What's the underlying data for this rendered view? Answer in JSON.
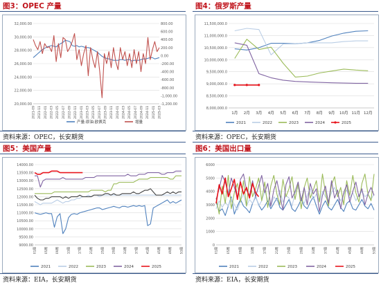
{
  "panels": [
    {
      "title": "图3：OPEC 产量",
      "source": "资料来源：OPEC，长安期货"
    },
    {
      "title": "图4：俄罗斯产量",
      "source": "资料来源：OPEC，长安期货"
    },
    {
      "title": "图5：美国产量",
      "source": "资料来源：EIA，长安期货"
    },
    {
      "title": "图6：美国出口量",
      "source": "资料来源：EIA，长安期货"
    }
  ],
  "colors": {
    "title": "#c0141c",
    "border": "#3a5a8c",
    "frame": "#9aa9bd",
    "grid": "#dcdcdc"
  },
  "chart_data": [
    {
      "type": "line",
      "ylim": [
        20000,
        32000
      ],
      "y2lim": [
        -1200,
        800
      ],
      "yticks": [
        "20,000.00",
        "22,000.00",
        "24,000.00",
        "26,000.00",
        "28,000.00",
        "30,000.00",
        "32,000.00"
      ],
      "y2ticks": [
        "-1,200.00",
        "-1,000.00",
        "-800.00",
        "-600.00",
        "-400.00",
        "-200.00",
        "0.00",
        "200.00",
        "400.00",
        "600.00",
        "800.00"
      ],
      "xticks": [
        "2021-09",
        "2021-11",
        "2022-01",
        "2022-03",
        "2022-05",
        "2022-07",
        "2022-09",
        "2022-11",
        "2023-01",
        "2023-03",
        "2023-05",
        "2023-07",
        "2023-09",
        "2023-11",
        "2024-01",
        "2024-03",
        "2024-05",
        "2024-07",
        "2024-09",
        "2024-11",
        "2025-01",
        "2025-03"
      ],
      "series": [
        {
          "name": "产量:原油:欧佩克",
          "color": "#4f81bd",
          "axis": "left",
          "values": [
            26900,
            27200,
            27500,
            27800,
            28100,
            28300,
            28500,
            28600,
            28700,
            28600,
            28500,
            28800,
            29000,
            29200,
            29500,
            29400,
            29300,
            28700,
            28600,
            28700,
            28500,
            28600,
            28500,
            28400,
            28400,
            28300,
            28100,
            27900,
            27700,
            27400,
            27100,
            26900,
            26800,
            26700,
            26600,
            26500,
            26500,
            26500,
            26600,
            26600,
            26500,
            26600,
            26600,
            26400,
            26500,
            26500,
            26500,
            26600,
            26700,
            26700,
            26800,
            26900,
            26900,
            26700,
            26800,
            26900
          ]
        },
        {
          "name": "增量",
          "color": "#c0504d",
          "axis": "right",
          "values": [
            400,
            250,
            150,
            350,
            50,
            300,
            200,
            220,
            100,
            500,
            -150,
            300,
            -50,
            450,
            400,
            100,
            200,
            350,
            550,
            -100,
            150,
            -250,
            50,
            250,
            -500,
            200,
            -100,
            -300,
            100,
            -400,
            -1050,
            50,
            -200,
            100,
            -300,
            200,
            -150,
            -350,
            200,
            -100,
            100,
            -250,
            50,
            -300,
            150,
            -200,
            100,
            -400,
            50,
            -200,
            450,
            -100,
            150,
            350,
            100,
            200
          ]
        }
      ]
    },
    {
      "type": "line",
      "ylim": [
        8000000,
        11500000
      ],
      "yticks": [
        "8,000,000.0",
        "8,500,000.0",
        "9,000,000.0",
        "9,500,000.0",
        "10,000,000.0",
        "10,500,000.0",
        "11,000,000.0",
        "11,500,000.0"
      ],
      "categories": [
        "1月",
        "2月",
        "3月",
        "4月",
        "5月",
        "6月",
        "7月",
        "8月",
        "9月",
        "10月",
        "11月",
        "12月"
      ],
      "series": [
        {
          "name": "2021",
          "color": "#4f81bd",
          "values": [
            10450000,
            10400000,
            10500000,
            10680000,
            10680000,
            10660000,
            10700000,
            10800000,
            10980000,
            11100000,
            11180000,
            11200000
          ]
        },
        {
          "name": "2022",
          "color": "#b9cde5",
          "values": [
            11200000,
            11300000,
            11250000,
            10200000,
            10650000,
            10650000,
            10700000,
            10700000,
            10700000,
            10750000,
            10780000,
            10780000
          ]
        },
        {
          "name": "2023",
          "color": "#9bbb59",
          "values": [
            10050000,
            10850000,
            10420000,
            10520000,
            9850000,
            9280000,
            9320000,
            9450000,
            9530000,
            9610000,
            9570000,
            9540000
          ]
        },
        {
          "name": "2024",
          "color": "#8064a2",
          "values": [
            10700000,
            10600000,
            9420000,
            9250000,
            9150000,
            9100000,
            9080000,
            9060000,
            9040000,
            9030000,
            9020000,
            9020000
          ]
        },
        {
          "name": "2025",
          "color": "#e8141c",
          "values": [
            8950000,
            8950000,
            8950000,
            null,
            null,
            null,
            null,
            null,
            null,
            null,
            null,
            null
          ]
        }
      ]
    },
    {
      "type": "line",
      "ylim": [
        9000,
        14000
      ],
      "yticks": [
        "9000.00",
        "9500.00",
        "10000.00",
        "10500.00",
        "11000.00",
        "11500.00",
        "12000.00",
        "12500.00",
        "13000.00",
        "13500.00",
        "14000.00"
      ],
      "xticks": [
        "01周",
        "05周",
        "09周",
        "13周",
        "17周",
        "21周",
        "25周",
        "29周",
        "33周",
        "37周",
        "41周",
        "45周",
        "49周",
        "53周"
      ],
      "series": [
        {
          "name": "2021",
          "color": "#4f81bd",
          "values": [
            11000,
            10950,
            10900,
            10950,
            11000,
            10950,
            10950,
            10100,
            10750,
            10950,
            9700,
            10000,
            10700,
            10900,
            10950,
            10900,
            11000,
            11050,
            11100,
            11150,
            11200,
            11250,
            11300,
            11300,
            11200,
            11250,
            11300,
            11350,
            11400,
            11350,
            11300,
            11400,
            11400,
            11350,
            11400,
            11450,
            11400,
            11450,
            11400,
            11450,
            10200,
            10300,
            11300,
            11400,
            11500,
            11600,
            11700,
            11800,
            11600,
            11700,
            11600,
            11700,
            11800
          ]
        },
        {
          "name": "2022",
          "color": "#b9cde5",
          "values": [
            11700,
            11600,
            11500,
            11600,
            11600,
            11600,
            11600,
            11700,
            11800,
            11700,
            11600,
            11700,
            11700,
            11800,
            11800,
            11900,
            11900,
            12000,
            12000,
            12100,
            12000,
            12100,
            12100,
            12000,
            12100,
            12100,
            12100,
            12100,
            12100,
            12100,
            12100,
            12100,
            12100,
            12100,
            12100,
            12100,
            12100,
            12100,
            12100,
            12100,
            12100,
            12100,
            12100,
            12100,
            12100,
            12100,
            12100,
            12100,
            12100,
            12100,
            12100,
            12100,
            12100
          ]
        },
        {
          "name": "2023",
          "color": "#9bbb59",
          "values": [
            12200,
            12200,
            12200,
            12200,
            12200,
            12200,
            12200,
            12300,
            12300,
            12300,
            12300,
            12300,
            12300,
            12300,
            12300,
            12300,
            12300,
            12300,
            12300,
            12300,
            12400,
            12400,
            12400,
            12400,
            12400,
            12300,
            12400,
            12400,
            12800,
            12800,
            12900,
            12900,
            12900,
            12900,
            12900,
            12900,
            13000,
            13100,
            13100,
            13100,
            13100,
            13200,
            13200,
            13200,
            13200,
            13200,
            13200,
            13200,
            13100,
            13100,
            13300,
            13300,
            13300
          ]
        },
        {
          "name": "2024",
          "color": "#8064a2",
          "values": [
            13300,
            13300,
            12600,
            13000,
            13100,
            13100,
            13100,
            13100,
            13100,
            13100,
            13200,
            13100,
            13100,
            13100,
            13100,
            13100,
            13100,
            13100,
            13200,
            13200,
            13200,
            13200,
            13300,
            13300,
            13300,
            13300,
            13300,
            13300,
            13300,
            13300,
            13300,
            13300,
            13300,
            13400,
            13300,
            13300,
            13300,
            13400,
            13400,
            13400,
            13500,
            13500,
            13500,
            13500,
            13500,
            13400,
            13400,
            13500,
            13500,
            13500,
            13600,
            13600,
            13600
          ]
        },
        {
          "name": "2025",
          "color": "#e8141c",
          "values": [
            13500,
            13400,
            13400,
            13500,
            13500,
            13500,
            13600,
            13600,
            13600,
            13500,
            13500,
            13500,
            13500,
            13500,
            13500,
            13500,
            13500,
            13500,
            null,
            null,
            null,
            null,
            null,
            null,
            null,
            null,
            null,
            null,
            null,
            null,
            null,
            null,
            null,
            null,
            null,
            null,
            null,
            null,
            null,
            null,
            null,
            null,
            null,
            null,
            null,
            null,
            null,
            null,
            null,
            null,
            null,
            null,
            null
          ]
        },
        {
          "name": "",
          "color": "#404040",
          "values": [
            12100,
            11900,
            11800,
            11800,
            11900,
            11900,
            12000,
            12000,
            12000,
            12000,
            11900,
            12000,
            11900,
            12000,
            12000,
            12000,
            12100,
            12000,
            12000,
            12000,
            12000,
            12100,
            12100,
            12100,
            12100,
            12200,
            12200,
            12100,
            12200,
            12100,
            12100,
            12200,
            12200,
            12200,
            12200,
            12300,
            12200,
            12200,
            12300,
            12400,
            12400,
            12500,
            12300,
            12100,
            12100,
            12100,
            12200,
            12300,
            12200,
            12300,
            12200,
            12300,
            12300
          ]
        }
      ]
    },
    {
      "type": "line",
      "ylim": [
        0,
        6000
      ],
      "yticks": [
        "0",
        "1000",
        "2000",
        "3000",
        "4000",
        "5000",
        "6000"
      ],
      "xticks": [
        "01周",
        "05周",
        "09周",
        "13周",
        "17周",
        "21周",
        "25周",
        "29周",
        "33周",
        "37周",
        "41周",
        "45周",
        "49周",
        "53周"
      ],
      "series": [
        {
          "name": "2021",
          "color": "#4f81bd",
          "values": [
            3200,
            2500,
            2700,
            2200,
            2900,
            3600,
            2300,
            2900,
            3400,
            2900,
            2700,
            2400,
            3100,
            3600,
            3000,
            2600,
            2900,
            3300,
            2700,
            3100,
            3500,
            2800,
            2600,
            3000,
            3400,
            2700,
            2500,
            2900,
            3400,
            2900,
            2700,
            3200,
            3600,
            2900,
            2300,
            2900,
            3300,
            2800,
            2600,
            3000,
            3400,
            2800,
            2500,
            3100,
            3300,
            2700,
            2600,
            3000,
            3400,
            2900,
            2700,
            3100,
            2600
          ]
        },
        {
          "name": "2022",
          "color": "#b9cde5",
          "values": [
            2700,
            3300,
            2800,
            3200,
            2900,
            3500,
            3000,
            2600,
            3300,
            3800,
            2900,
            3400,
            3100,
            3700,
            2900,
            3300,
            4000,
            3400,
            2900,
            3600,
            3300,
            4100,
            3200,
            3700,
            3500,
            2900,
            3900,
            4300,
            3500,
            3100,
            3700,
            4200,
            3400,
            3800,
            3200,
            4000,
            3600,
            3300,
            3900,
            4300,
            3700,
            3300,
            3800,
            4100,
            3500,
            3900,
            3300,
            3700,
            4000,
            3600,
            3800,
            3400,
            3800
          ]
        },
        {
          "name": "2023",
          "color": "#9bbb59",
          "values": [
            3500,
            2300,
            4400,
            3100,
            5200,
            2700,
            3900,
            4600,
            3200,
            4800,
            2900,
            5100,
            3600,
            4200,
            5000,
            3300,
            4700,
            2800,
            4400,
            5200,
            3800,
            3000,
            4900,
            3600,
            4200,
            5100,
            3400,
            4600,
            2700,
            4300,
            5000,
            3500,
            4100,
            4800,
            3200,
            5300,
            3900,
            2900,
            4500,
            5100,
            3600,
            4300,
            3000,
            4800,
            3700,
            5200,
            3900,
            3200,
            4600,
            5300,
            3800,
            3300,
            5300
          ]
        },
        {
          "name": "2024",
          "color": "#8064a2",
          "values": [
            3400,
            4200,
            5200,
            4700,
            3800,
            5000,
            4300,
            3500,
            4900,
            5300,
            4100,
            3700,
            4800,
            3600,
            4400,
            5200,
            3900,
            4600,
            2900,
            4100,
            4800,
            3700,
            2600,
            4500,
            5100,
            3500,
            4000,
            4700,
            3300,
            4300,
            3000,
            4600,
            3800,
            4200,
            2500,
            3700,
            4400,
            3100,
            4800,
            3500,
            4100,
            2700,
            3900,
            4500,
            3200,
            4000,
            4700,
            3600,
            4200,
            3000,
            3800,
            4300,
            3700
          ]
        },
        {
          "name": "2025",
          "color": "#e8141c",
          "values": [
            3100,
            4500,
            3800,
            5000,
            3600,
            4200,
            4900,
            3400,
            4700,
            3800,
            4300,
            3500,
            4600,
            3900,
            3600,
            null,
            null,
            null,
            null,
            null,
            null,
            null,
            null,
            null,
            null,
            null,
            null,
            null,
            null,
            null,
            null,
            null,
            null,
            null,
            null,
            null,
            null,
            null,
            null,
            null,
            null,
            null,
            null,
            null,
            null,
            null,
            null,
            null,
            null,
            null,
            null,
            null,
            null
          ]
        }
      ]
    }
  ]
}
